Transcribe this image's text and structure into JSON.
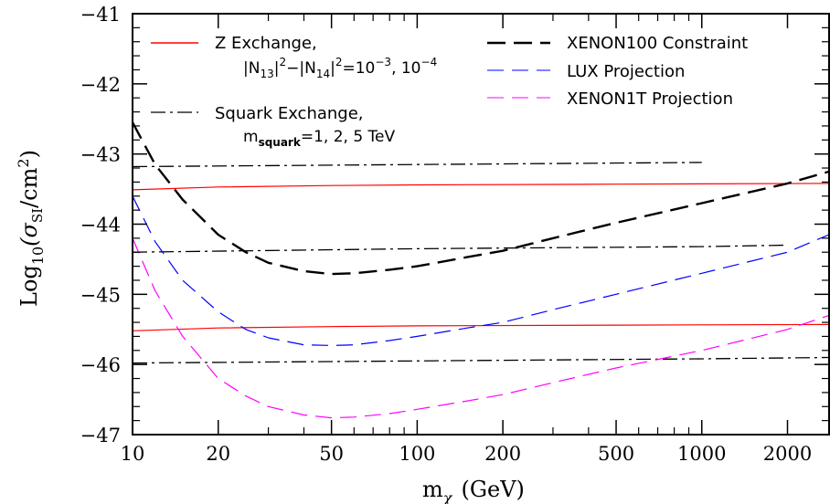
{
  "chart_data": {
    "type": "line",
    "xlabel_main": "m",
    "xlabel_sub": "χ",
    "xlabel_unit": "(GeV)",
    "ylabel_prefix": "Log",
    "ylabel_sub10": "10",
    "ylabel_paren_open": "(σ",
    "ylabel_sub_si": "SI",
    "ylabel_unit": "/cm",
    "ylabel_sup": "2",
    "ylabel_close": ")",
    "x_scale": "log",
    "xlim": [
      10,
      2800
    ],
    "ylim": [
      -47,
      -41
    ],
    "x_tick_values": [
      10,
      20,
      50,
      100,
      200,
      500,
      1000,
      2000
    ],
    "x_tick_labels": [
      "10",
      "20",
      "50",
      "100",
      "200",
      "500",
      "1000",
      "2000"
    ],
    "y_tick_values": [
      -47,
      -46,
      -45,
      -44,
      -43,
      -42,
      -41
    ],
    "y_tick_labels": [
      "−47",
      "−46",
      "−45",
      "−44",
      "−43",
      "−42",
      "−41"
    ],
    "legend": {
      "z_exchange_label": "Z Exchange,",
      "z_exchange_detail": {
        "n13": "|N",
        "n13_sub": "13",
        "n13_close": "|",
        "n13_sup": "2",
        "minus": "−|N",
        "n14_sub": "14",
        "n14_close": "|",
        "n14_sup": "2",
        "eq": "=10",
        "exp1": "−3",
        "comma": ", 10",
        "exp2": "−4"
      },
      "squark_label": "Squark Exchange,",
      "squark_detail": {
        "m": "m",
        "m_sub": "squark",
        "values": "=1, 2, 5 TeV"
      },
      "xenon100_label": "XENON100 Constraint",
      "lux_label": "LUX Projection",
      "xenon1t_label": "XENON1T Projection"
    },
    "colors": {
      "z_exchange": "#ff0000",
      "squark": "#000000",
      "xenon100": "#000000",
      "lux": "#0000ff",
      "xenon1t": "#ff00ff"
    },
    "series": [
      {
        "name": "Z Exchange, |N13|^2-|N14|^2=10^-3",
        "style": "solid",
        "color": "#ff0000",
        "points": [
          [
            10,
            -43.51
          ],
          [
            20,
            -43.47
          ],
          [
            50,
            -43.45
          ],
          [
            100,
            -43.44
          ],
          [
            500,
            -43.43
          ],
          [
            2800,
            -43.42
          ]
        ]
      },
      {
        "name": "Z Exchange, |N13|^2-|N14|^2=10^-4",
        "style": "solid",
        "color": "#ff0000",
        "points": [
          [
            10,
            -45.52
          ],
          [
            20,
            -45.48
          ],
          [
            50,
            -45.46
          ],
          [
            100,
            -45.45
          ],
          [
            500,
            -45.44
          ],
          [
            2800,
            -45.43
          ]
        ]
      },
      {
        "name": "Squark Exchange, m_squark=1 TeV",
        "style": "dashdot",
        "color": "#000000",
        "points": [
          [
            10,
            -43.18
          ],
          [
            100,
            -43.15
          ],
          [
            1000,
            -43.12
          ]
        ]
      },
      {
        "name": "Squark Exchange, m_squark=2 TeV",
        "style": "dashdot",
        "color": "#000000",
        "points": [
          [
            10,
            -44.4
          ],
          [
            100,
            -44.35
          ],
          [
            1000,
            -44.32
          ],
          [
            2000,
            -44.3
          ]
        ]
      },
      {
        "name": "Squark Exchange, m_squark=5 TeV",
        "style": "dashdot",
        "color": "#000000",
        "points": [
          [
            10,
            -45.98
          ],
          [
            100,
            -45.95
          ],
          [
            1000,
            -45.92
          ],
          [
            2800,
            -45.9
          ]
        ]
      },
      {
        "name": "XENON100 Constraint",
        "style": "longdash",
        "color": "#000000",
        "points": [
          [
            10,
            -42.55
          ],
          [
            12,
            -43.15
          ],
          [
            15,
            -43.65
          ],
          [
            20,
            -44.15
          ],
          [
            25,
            -44.4
          ],
          [
            30,
            -44.55
          ],
          [
            40,
            -44.67
          ],
          [
            50,
            -44.71
          ],
          [
            60,
            -44.7
          ],
          [
            80,
            -44.65
          ],
          [
            100,
            -44.6
          ],
          [
            150,
            -44.47
          ],
          [
            200,
            -44.38
          ],
          [
            300,
            -44.2
          ],
          [
            500,
            -43.98
          ],
          [
            1000,
            -43.7
          ],
          [
            2000,
            -43.42
          ],
          [
            2800,
            -43.25
          ]
        ]
      },
      {
        "name": "LUX Projection",
        "style": "dashed",
        "color": "#0000ff",
        "points": [
          [
            10,
            -43.6
          ],
          [
            12,
            -44.25
          ],
          [
            15,
            -44.8
          ],
          [
            20,
            -45.25
          ],
          [
            25,
            -45.5
          ],
          [
            30,
            -45.62
          ],
          [
            40,
            -45.72
          ],
          [
            50,
            -45.73
          ],
          [
            60,
            -45.72
          ],
          [
            80,
            -45.66
          ],
          [
            100,
            -45.6
          ],
          [
            150,
            -45.48
          ],
          [
            200,
            -45.4
          ],
          [
            300,
            -45.22
          ],
          [
            500,
            -45.0
          ],
          [
            1000,
            -44.7
          ],
          [
            2000,
            -44.4
          ],
          [
            2800,
            -44.15
          ]
        ]
      },
      {
        "name": "XENON1T Projection",
        "style": "dashed",
        "color": "#ff00ff",
        "points": [
          [
            10,
            -44.2
          ],
          [
            12,
            -44.95
          ],
          [
            15,
            -45.6
          ],
          [
            20,
            -46.2
          ],
          [
            25,
            -46.45
          ],
          [
            30,
            -46.6
          ],
          [
            40,
            -46.72
          ],
          [
            50,
            -46.76
          ],
          [
            60,
            -46.75
          ],
          [
            80,
            -46.7
          ],
          [
            100,
            -46.64
          ],
          [
            150,
            -46.52
          ],
          [
            200,
            -46.43
          ],
          [
            300,
            -46.26
          ],
          [
            500,
            -46.05
          ],
          [
            1000,
            -45.8
          ],
          [
            2000,
            -45.5
          ],
          [
            2800,
            -45.3
          ]
        ]
      }
    ]
  }
}
